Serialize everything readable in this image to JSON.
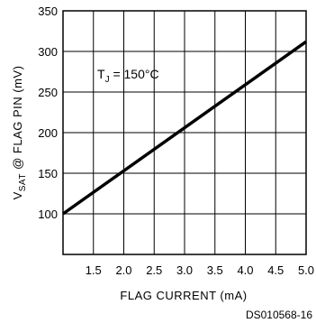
{
  "chart_data": {
    "type": "line",
    "xlabel": "FLAG CURRENT (mA)",
    "ylabel_main": "V",
    "ylabel_sub": "SAT",
    "ylabel_rest": " @ FLAG PIN (mV)",
    "annotation_main": "T",
    "annotation_sub": "J",
    "annotation_rest": " = 150°C",
    "figure_code": "DS010568-16",
    "xlim": [
      1.0,
      5.0
    ],
    "ylim": [
      50,
      350
    ],
    "x_ticks": [
      1.5,
      2.0,
      2.5,
      3.0,
      3.5,
      4.0,
      4.5,
      5.0
    ],
    "x_tick_labels": [
      "1.5",
      "2.0",
      "2.5",
      "3.0",
      "3.5",
      "4.0",
      "4.5",
      "5.0"
    ],
    "y_ticks": [
      100,
      150,
      200,
      250,
      300,
      350
    ],
    "y_tick_labels": [
      "100",
      "150",
      "200",
      "250",
      "300",
      "350"
    ],
    "grid": true,
    "series": [
      {
        "x": [
          1.0,
          5.0
        ],
        "y": [
          100,
          312
        ]
      }
    ]
  }
}
